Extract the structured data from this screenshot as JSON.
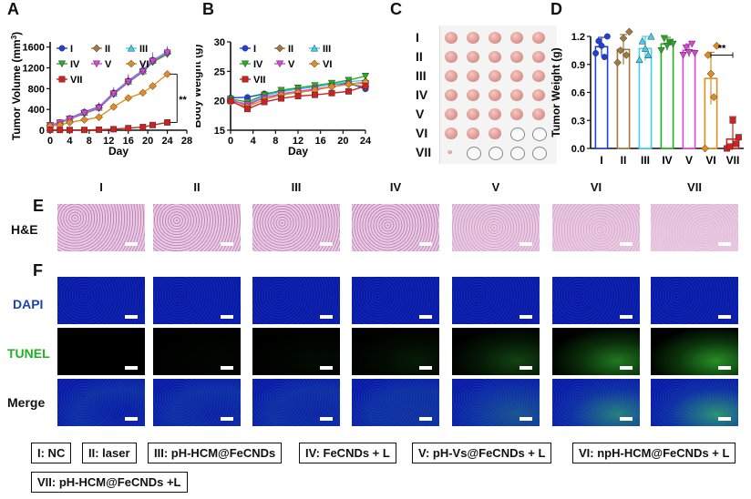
{
  "panels": {
    "a": "A",
    "b": "B",
    "c": "C",
    "d": "D",
    "e": "E",
    "f": "F"
  },
  "group_ids": [
    "I",
    "II",
    "III",
    "IV",
    "V",
    "VI",
    "VII"
  ],
  "group_colors": {
    "I": "#1f3fd8",
    "II": "#a07840",
    "III": "#3fd0f0",
    "IV": "#22b022",
    "V": "#e040e0",
    "VI": "#e08c20",
    "VII": "#d02020"
  },
  "chart_data": [
    {
      "type": "line",
      "panel": "A",
      "title": "",
      "xlabel": "Day",
      "ylabel": "Tumor Volume (mm³)",
      "ylabel_prefix": "Tumor Volume (mm",
      "ylabel_sup": "3",
      "ylabel_suffix": ")",
      "xlim": [
        0,
        28
      ],
      "ylim": [
        0,
        1700
      ],
      "xticks": [
        0,
        4,
        8,
        12,
        16,
        20,
        24,
        28
      ],
      "yticks": [
        0,
        400,
        800,
        1200,
        1600
      ],
      "x": [
        0,
        2,
        4,
        7,
        10,
        13,
        16,
        19,
        21,
        24
      ],
      "series": [
        {
          "name": "I",
          "values": [
            100,
            150,
            230,
            350,
            450,
            720,
            950,
            1150,
            1350,
            1500
          ]
        },
        {
          "name": "II",
          "values": [
            95,
            140,
            220,
            330,
            430,
            700,
            930,
            1130,
            1320,
            1480
          ]
        },
        {
          "name": "III",
          "values": [
            100,
            150,
            225,
            340,
            440,
            710,
            940,
            1140,
            1340,
            1520
          ]
        },
        {
          "name": "IV",
          "values": [
            90,
            140,
            215,
            320,
            420,
            690,
            920,
            1120,
            1310,
            1460
          ]
        },
        {
          "name": "V",
          "values": [
            95,
            145,
            220,
            330,
            430,
            700,
            930,
            1130,
            1330,
            1490
          ]
        },
        {
          "name": "VI",
          "values": [
            80,
            100,
            150,
            200,
            250,
            450,
            620,
            720,
            850,
            1080
          ]
        },
        {
          "name": "VII",
          "values": [
            10,
            5,
            5,
            5,
            10,
            20,
            40,
            60,
            100,
            150
          ]
        }
      ],
      "error_top": [
        130,
        180,
        270,
        420,
        540,
        830,
        1080,
        1300,
        1500,
        1620
      ],
      "sig_label": "**"
    },
    {
      "type": "line",
      "panel": "B",
      "title": "",
      "xlabel": "Day",
      "ylabel": "Body Weight (g)",
      "xlim": [
        0,
        24
      ],
      "ylim": [
        15,
        30
      ],
      "xticks": [
        0,
        4,
        8,
        12,
        16,
        20,
        24
      ],
      "yticks": [
        15,
        20,
        25,
        30
      ],
      "x": [
        0,
        3,
        6,
        9,
        12,
        15,
        18,
        21,
        24
      ],
      "series": [
        {
          "name": "I",
          "values": [
            20.5,
            20.6,
            21.2,
            21.6,
            22.0,
            22.4,
            22.8,
            23.0,
            22.0
          ]
        },
        {
          "name": "II",
          "values": [
            20.2,
            19.2,
            20.6,
            21.0,
            21.4,
            21.9,
            22.4,
            22.8,
            22.4
          ]
        },
        {
          "name": "III",
          "values": [
            20.0,
            19.5,
            20.8,
            21.5,
            22.0,
            22.5,
            22.8,
            23.2,
            23.5
          ]
        },
        {
          "name": "IV",
          "values": [
            20.3,
            19.8,
            21.0,
            21.8,
            22.2,
            22.6,
            23.0,
            23.5,
            24.2
          ]
        },
        {
          "name": "V",
          "values": [
            20.0,
            19.4,
            20.5,
            21.2,
            21.6,
            22.0,
            22.4,
            22.9,
            23.0
          ]
        },
        {
          "name": "VI",
          "values": [
            19.8,
            19.0,
            20.2,
            21.0,
            21.4,
            21.8,
            22.4,
            22.8,
            23.2
          ]
        },
        {
          "name": "VII",
          "values": [
            20.0,
            18.6,
            19.8,
            20.4,
            20.8,
            21.0,
            21.3,
            21.6,
            22.5
          ]
        }
      ]
    },
    {
      "type": "bar",
      "panel": "D",
      "title": "",
      "xlabel": "",
      "ylabel": "Tumor Weight (g)",
      "ylim": [
        0,
        1.2
      ],
      "yticks": [
        0.0,
        0.3,
        0.6,
        0.9,
        1.2
      ],
      "ytick_labels": [
        "0.0",
        "0.3",
        "0.6",
        "0.9",
        "1.2"
      ],
      "categories": [
        "I",
        "II",
        "III",
        "IV",
        "V",
        "VI",
        "VII"
      ],
      "values": [
        1.09,
        1.06,
        1.07,
        1.12,
        1.05,
        0.75,
        0.1
      ],
      "errors": [
        0.1,
        0.16,
        0.13,
        0.07,
        0.07,
        0.28,
        0.24
      ],
      "points": [
        [
          1.02,
          1.15,
          1.1,
          0.98,
          1.2
        ],
        [
          0.92,
          1.05,
          1.18,
          1.0,
          1.25
        ],
        [
          0.95,
          1.15,
          1.07,
          1.0,
          1.2
        ],
        [
          1.05,
          1.18,
          1.1,
          1.14,
          1.12
        ],
        [
          1.0,
          1.08,
          1.03,
          1.12,
          1.02
        ],
        [
          0.0,
          1.0,
          0.8,
          0.55,
          1.1
        ],
        [
          0.0,
          0.02,
          0.3,
          0.05,
          0.12
        ]
      ],
      "sig_label": "**"
    }
  ],
  "panel_c": {
    "row_labels": [
      "I",
      "II",
      "III",
      "IV",
      "V",
      "VI",
      "VII"
    ],
    "tumor_counts": [
      5,
      5,
      5,
      5,
      5,
      3,
      1
    ]
  },
  "panel_e": {
    "row_label": "H&E",
    "column_labels": [
      "I",
      "II",
      "III",
      "IV",
      "V",
      "VI",
      "VII"
    ]
  },
  "panel_f": {
    "row_labels": [
      "DAPI",
      "TUNEL",
      "Merge"
    ],
    "row_label_colors": [
      "#1f3fb0",
      "#22b022",
      "#111111"
    ]
  },
  "legend_items": [
    "I: NC",
    "II: laser",
    "III: pH-HCM@FeCNDs",
    "IV: FeCNDs + L",
    "V: pH-Vs@FeCNDs + L",
    "VI: npH-HCM@FeCNDs + L",
    "VII: pH-HCM@FeCNDs +L"
  ]
}
